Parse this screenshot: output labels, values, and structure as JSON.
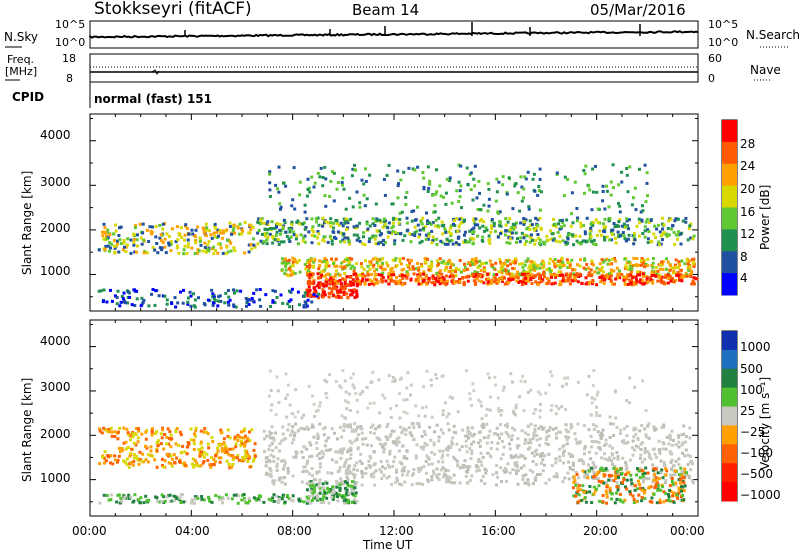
{
  "header": {
    "station": "Stokkseyri (fitACF)",
    "beam": "Beam 14",
    "date": "05/Mar/2016"
  },
  "noise_panel": {
    "left_label": "N.Sky",
    "left_ticks": [
      "10^5",
      "10^0"
    ],
    "right_label": "N.Search",
    "right_ticks": [
      "10^5",
      "10^0"
    ]
  },
  "freq_panel": {
    "left_label_1": "Freq.",
    "left_label_2": "[MHz]",
    "left_ticks": [
      "18",
      "8"
    ],
    "right_label": "Nave",
    "right_ticks": [
      "60",
      "0"
    ]
  },
  "cpid_panel": {
    "label": "CPID",
    "text": "normal (fast) 151"
  },
  "chart_data": [
    {
      "type": "heatmap",
      "panel": "power",
      "ylabel": "Slant Range [km]",
      "yticks": [
        "4000",
        "3000",
        "2000",
        "1000"
      ],
      "ylim": [
        180,
        4600
      ],
      "colorbar_label": "Power [dB]",
      "colorbar_ticks": [
        "28",
        "24",
        "20",
        "16",
        "12",
        "8",
        "4"
      ],
      "colorbar_colors": [
        "#ff0000",
        "#ff5a00",
        "#ffa000",
        "#d8d800",
        "#60c830",
        "#209050",
        "#2050a0",
        "#0000ff"
      ]
    },
    {
      "type": "heatmap",
      "panel": "velocity",
      "ylabel": "Slant Range [km]",
      "yticks": [
        "4000",
        "3000",
        "2000",
        "1000"
      ],
      "ylim": [
        180,
        4600
      ],
      "colorbar_label": "Velocity [m s⁻¹]",
      "colorbar_ticks": [
        "1000",
        "500",
        "100",
        "25",
        "−25",
        "−100",
        "−500",
        "−1000"
      ],
      "colorbar_colors": [
        "#1030b0",
        "#2070c0",
        "#208040",
        "#50c030",
        "#c8c8c0",
        "#ffa000",
        "#ff6000",
        "#ff2000",
        "#ff0000"
      ]
    }
  ],
  "x_axis": {
    "ticks": [
      "00:00",
      "04:00",
      "08:00",
      "12:00",
      "16:00",
      "20:00",
      "00:00"
    ],
    "label": "Time UT"
  }
}
